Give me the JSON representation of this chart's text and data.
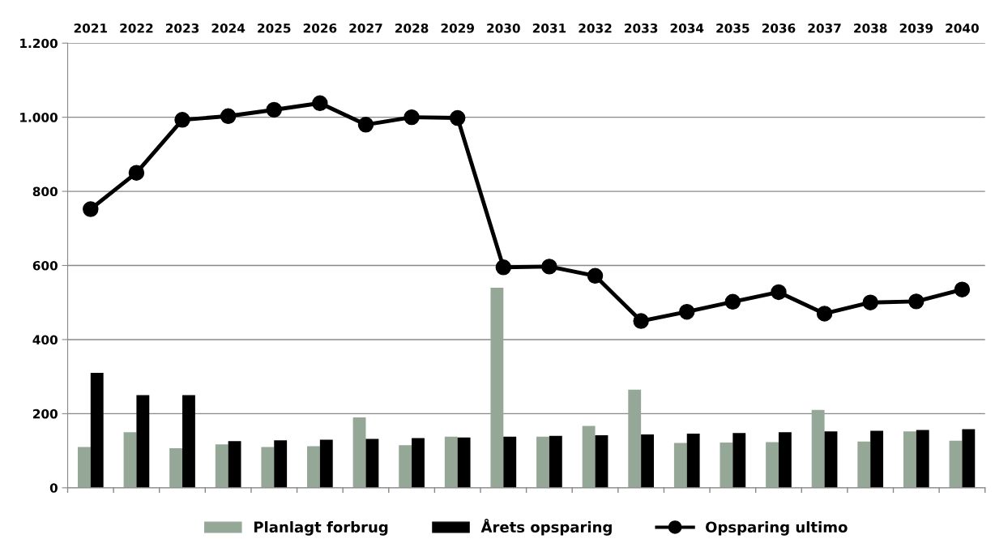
{
  "chart_data": {
    "type": "bar",
    "categories": [
      "2021",
      "2022",
      "2023",
      "2024",
      "2025",
      "2026",
      "2027",
      "2028",
      "2029",
      "2030",
      "2031",
      "2032",
      "2033",
      "2034",
      "2035",
      "2036",
      "2037",
      "2038",
      "2039",
      "2040"
    ],
    "series": [
      {
        "name": "Planlagt forbrug",
        "color": "#95a898",
        "values": [
          110,
          150,
          107,
          117,
          110,
          112,
          190,
          115,
          138,
          540,
          138,
          167,
          265,
          121,
          122,
          123,
          210,
          125,
          152,
          127
        ]
      },
      {
        "name": "Årets opsparing",
        "color": "#000000",
        "values": [
          310,
          250,
          250,
          126,
          128,
          130,
          132,
          134,
          136,
          138,
          140,
          142,
          144,
          146,
          148,
          150,
          152,
          154,
          156,
          158
        ]
      },
      {
        "name": "Opsparing ultimo",
        "type": "line",
        "color": "#000000",
        "marker": "circle",
        "values": [
          752,
          850,
          993,
          1003,
          1020,
          1038,
          980,
          1000,
          998,
          595,
          597,
          572,
          450,
          475,
          502,
          528,
          470,
          500,
          503,
          535
        ]
      }
    ],
    "ylim": [
      0,
      1200
    ],
    "yticks": [
      0,
      200,
      400,
      600,
      800,
      {
        "value": 1000,
        "label": "1.000"
      },
      {
        "value": 1200,
        "label": "1.200"
      }
    ],
    "grid": "y",
    "legend": "bottom"
  }
}
